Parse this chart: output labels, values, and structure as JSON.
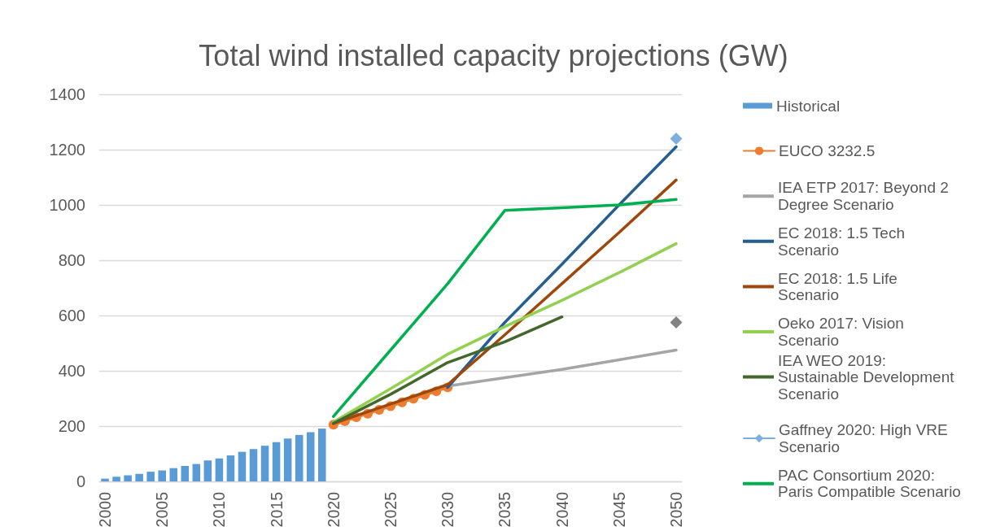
{
  "chart_data": {
    "type": "line",
    "title": "Total wind installed capacity projections (GW)",
    "xlim": [
      1999.5,
      2050.5
    ],
    "xticks": [
      2000,
      2005,
      2010,
      2015,
      2020,
      2025,
      2030,
      2035,
      2040,
      2045,
      2050
    ],
    "ylim": [
      0,
      1400
    ],
    "yticks": [
      0,
      200,
      400,
      600,
      800,
      1000,
      1200,
      1400
    ],
    "grid": "y",
    "legend": "right",
    "series": [
      {
        "name": "Historical",
        "type": "bar",
        "color": "#5b9bd5",
        "x": [
          2000,
          2001,
          2002,
          2003,
          2004,
          2005,
          2006,
          2007,
          2008,
          2009,
          2010,
          2011,
          2012,
          2013,
          2014,
          2015,
          2016,
          2017,
          2018,
          2019
        ],
        "values": [
          10,
          17,
          22,
          27,
          35,
          40,
          48,
          56,
          63,
          76,
          83,
          94,
          107,
          117,
          129,
          142,
          155,
          168,
          178,
          191
        ]
      },
      {
        "name": "EUCO 3232.5",
        "color": "#ed7d31",
        "marker": "circle",
        "x": [
          2020,
          2021,
          2022,
          2023,
          2024,
          2025,
          2026,
          2027,
          2028,
          2029,
          2030
        ],
        "values": [
          205,
          218,
          232,
          245,
          259,
          272,
          286,
          299,
          313,
          326,
          340
        ]
      },
      {
        "name": "IEA ETP 2017: Beyond 2 Degree Scenario",
        "color": "#a5a5a5",
        "x": [
          2030,
          2035,
          2040,
          2045,
          2050
        ],
        "values": [
          345,
          375,
          405,
          440,
          475
        ]
      },
      {
        "name": "EC 2018: 1.5 Tech Scenario",
        "color": "#255e91",
        "x": [
          2030,
          2035,
          2040,
          2045,
          2050
        ],
        "values": [
          340,
          575,
          785,
          1000,
          1210
        ]
      },
      {
        "name": "EC 2018: 1.5 Life Scenario",
        "color": "#9e480e",
        "x": [
          2020,
          2025,
          2030,
          2035,
          2040,
          2045,
          2050
        ],
        "values": [
          210,
          280,
          350,
          530,
          715,
          900,
          1090
        ]
      },
      {
        "name": "Oeko 2017: Vision Scenario",
        "color": "#92d050",
        "x": [
          2020,
          2025,
          2030,
          2035,
          2040,
          2045,
          2050
        ],
        "values": [
          215,
          335,
          460,
          560,
          655,
          755,
          860
        ]
      },
      {
        "name": "IEA WEO 2019: Sustainable Development Scenario",
        "color": "#43682b",
        "x": [
          2020,
          2025,
          2030,
          2035,
          2040
        ],
        "values": [
          210,
          315,
          430,
          505,
          595
        ]
      },
      {
        "name": "Gaffney 2020: High VRE Scenario",
        "color": "#7cafdd",
        "marker": "diamond",
        "x": [
          2050
        ],
        "values": [
          1240
        ]
      },
      {
        "name": "PAC Consortium 2020: Paris Compatible Scenario",
        "color": "#00b050",
        "x": [
          2020,
          2025,
          2030,
          2035,
          2040,
          2045,
          2050
        ],
        "values": [
          235,
          475,
          715,
          980,
          990,
          1000,
          1020
        ]
      },
      {
        "type": "scatter",
        "color": "#636363",
        "marker": "diamond",
        "x": [
          2050
        ],
        "values": [
          575
        ]
      }
    ]
  }
}
